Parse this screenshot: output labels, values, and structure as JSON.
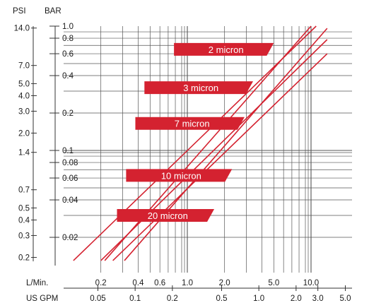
{
  "chart_data": {
    "type": "line",
    "title": "",
    "axes": {
      "psi_title": "PSI",
      "bar_title": "BAR",
      "lpm_title": "L/Min.",
      "gpm_title": "US GPM",
      "bar_range": [
        0.013,
        1.0
      ],
      "lpm_range": [
        0.12,
        13.5
      ],
      "scale": "log",
      "grid": true
    },
    "bar_ticks": [
      {
        "v": 1.0,
        "label": "1.0"
      },
      {
        "v": 0.8,
        "label": "0.8"
      },
      {
        "v": 0.6,
        "label": "0.6"
      },
      {
        "v": 0.4,
        "label": "0.4"
      },
      {
        "v": 0.2,
        "label": "0.2"
      },
      {
        "v": 0.1,
        "label": "0.1"
      },
      {
        "v": 0.08,
        "label": "0.08"
      },
      {
        "v": 0.06,
        "label": "0.06"
      },
      {
        "v": 0.04,
        "label": "0.04"
      },
      {
        "v": 0.02,
        "label": "0.02"
      }
    ],
    "psi_ticks": [
      {
        "v": 14.0,
        "label": "14.0"
      },
      {
        "v": 7.0,
        "label": "7.0"
      },
      {
        "v": 5.0,
        "label": "5.0"
      },
      {
        "v": 4.0,
        "label": "4.0"
      },
      {
        "v": 3.0,
        "label": "3.0"
      },
      {
        "v": 2.0,
        "label": "2.0"
      },
      {
        "v": 1.4,
        "label": "1.4"
      },
      {
        "v": 0.7,
        "label": "0.7"
      },
      {
        "v": 0.5,
        "label": "0.5"
      },
      {
        "v": 0.4,
        "label": "0.4"
      },
      {
        "v": 0.3,
        "label": "0.3"
      },
      {
        "v": 0.2,
        "label": "0.2"
      }
    ],
    "lpm_ticks": [
      {
        "v": 0.2,
        "label": "0.2"
      },
      {
        "v": 0.4,
        "label": "0.4"
      },
      {
        "v": 0.6,
        "label": "0.6"
      },
      {
        "v": 1.0,
        "label": "1.0"
      },
      {
        "v": 2.0,
        "label": "2.0"
      },
      {
        "v": 5.0,
        "label": "5.0"
      },
      {
        "v": 10.0,
        "label": "10.0"
      }
    ],
    "gpm_ticks": [
      {
        "v": 0.05,
        "label": "0.05"
      },
      {
        "v": 0.1,
        "label": "0.1"
      },
      {
        "v": 0.2,
        "label": "0.2"
      },
      {
        "v": 0.5,
        "label": "0.5"
      },
      {
        "v": 1.0,
        "label": "1.0"
      },
      {
        "v": 2.0,
        "label": "2.0"
      },
      {
        "v": 3.0,
        "label": "3.0"
      },
      {
        "v": 5.0,
        "label": "5.0"
      }
    ],
    "series": [
      {
        "name": "2 micron",
        "points": [
          [
            0.215,
            0.013
          ],
          [
            10.0,
            1.0
          ]
        ],
        "label_at": [
          0.78,
          5.0,
          0.65
        ]
      },
      {
        "name": "3 micron",
        "points": [
          [
            0.12,
            0.013
          ],
          [
            11.0,
            1.0
          ]
        ],
        "label_at": [
          0.45,
          3.4,
          0.32
        ]
      },
      {
        "name": "7 micron",
        "points": [
          [
            0.31,
            0.013
          ],
          [
            13.5,
            0.96
          ]
        ],
        "label_at": [
          0.38,
          2.9,
          0.165
        ]
      },
      {
        "name": "10 micron",
        "points": [
          [
            0.2,
            0.013
          ],
          [
            13.5,
            0.78
          ]
        ],
        "label_at": [
          0.32,
          2.3,
          0.063
        ]
      },
      {
        "name": "20 micron",
        "points": [
          [
            0.25,
            0.013
          ],
          [
            13.5,
            0.6
          ]
        ],
        "label_at": [
          0.27,
          1.65,
          0.03
        ]
      }
    ],
    "colors": {
      "series": "#d42230",
      "band": "#d42230",
      "grid": "#555555",
      "axis": "#333333"
    }
  }
}
